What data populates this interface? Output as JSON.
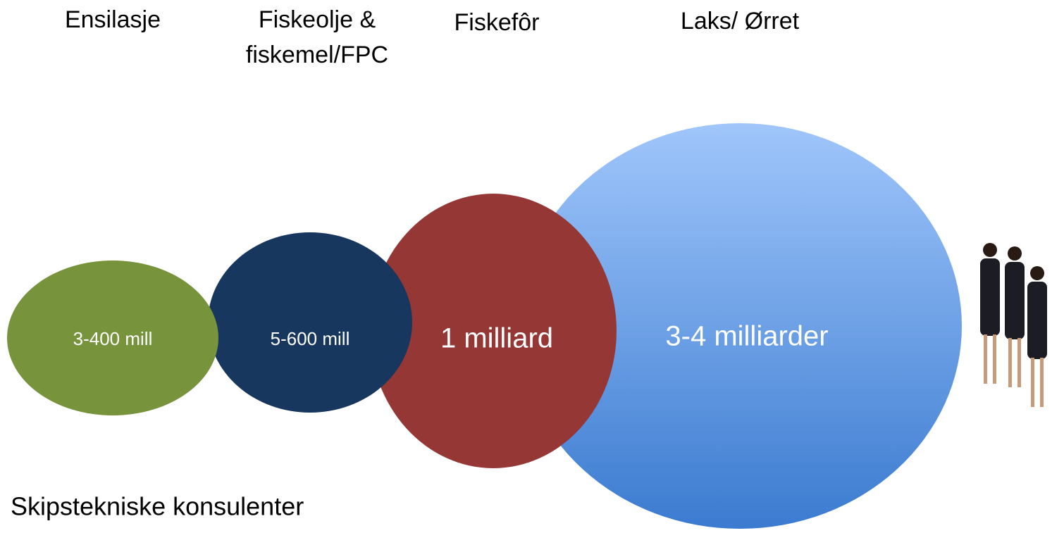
{
  "columns": [
    {
      "header": [
        "Ensilasje"
      ],
      "label": "3-400 mill"
    },
    {
      "header": [
        "Fiskeolje &",
        "fiskemel/FPC"
      ],
      "label": "5-600 mill"
    },
    {
      "header": [
        "Fiskefôr"
      ],
      "label": "1 milliard"
    },
    {
      "header": [
        "Laks/ Ørret"
      ],
      "label": "3-4 milliarder"
    }
  ],
  "footer": "Skipstekniske konsulenter"
}
